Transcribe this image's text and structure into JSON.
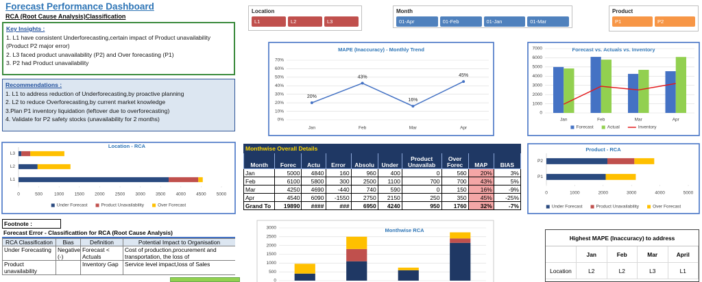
{
  "header": {
    "title": "Forecast Performance Dashboard",
    "subtitle": "RCA (Root Cause Analysis)Classification"
  },
  "key_insights": {
    "title": "Key Insights :",
    "items": [
      "1. L1 have consistent Underforecasting,certain impact of Product unavailability (Product P2 major error)",
      "2. L3 faced product unavailability (P2) and Over forecasting (P1)",
      "3. P2 had Product unavailability"
    ]
  },
  "recommendations": {
    "title": "Recommendations :",
    "items": [
      "1. L1 to address reduction of Underforecasting,by proactive planning",
      "2. L2 to reduce Overforecasting,by current market knowledge",
      "3.Plan P1 inventory liquidation (leftover due to overforecasting)",
      "4. Validate for P2 safety stocks (unavailability for 2 months)"
    ]
  },
  "slicers": [
    {
      "title": "Location",
      "items": [
        "L1",
        "L2",
        "L3"
      ],
      "color": "#c0504d"
    },
    {
      "title": "Month",
      "items": [
        "01-Apr",
        "01-Feb",
        "01-Jan",
        "01-Mar"
      ],
      "color": "#4f81bd"
    },
    {
      "title": "Product",
      "items": [
        "P1",
        "P2"
      ],
      "color": "#f79646"
    }
  ],
  "chart_data": [
    {
      "type": "line",
      "title": "MAPE (Inaccuracy) - Monthly Trend",
      "categories": [
        "Jan",
        "Feb",
        "Mar",
        "Apr"
      ],
      "values": [
        20,
        43,
        16,
        45
      ],
      "value_labels": [
        "20%",
        "43%",
        "16%",
        "45%"
      ],
      "color": "#4472c4",
      "ylim": [
        0,
        70
      ],
      "yticks": [
        {
          "value": 0,
          "label": "0%"
        },
        {
          "value": 10,
          "label": "10%"
        },
        {
          "value": 20,
          "label": "20%"
        },
        {
          "value": 30,
          "label": "30%"
        },
        {
          "value": 40,
          "label": "40%"
        },
        {
          "value": 50,
          "label": "50%"
        },
        {
          "value": 60,
          "label": "60%"
        },
        {
          "value": 70,
          "label": "70%"
        }
      ],
      "grid": true
    },
    {
      "type": "bar",
      "title": "Forecast vs. Actuals vs. Inventory",
      "categories": [
        "Jan",
        "Feb",
        "Mar",
        "Apr"
      ],
      "series": [
        {
          "name": "Forecast",
          "color": "#4472c4",
          "values": [
            5000,
            6100,
            4250,
            4540
          ]
        },
        {
          "name": "Actual",
          "color": "#92d050",
          "values": [
            4840,
            5800,
            4690,
            6090
          ]
        },
        {
          "name": "Inventory",
          "color": "#e31a1c",
          "values": [
            950,
            2900,
            2500,
            3200
          ],
          "style": "line"
        }
      ],
      "ylim": [
        0,
        7000
      ],
      "yticks": [
        0,
        1000,
        2000,
        3000,
        4000,
        5000,
        6000,
        7000
      ],
      "grid": true,
      "legend": "bottom"
    },
    {
      "type": "hbar",
      "title": "Location - RCA",
      "categories": [
        "L1",
        "L2",
        "L3"
      ],
      "stacked": true,
      "series": [
        {
          "name": "Under Forecast",
          "color": "#2a4a7f",
          "values": [
            3700,
            470,
            70
          ]
        },
        {
          "name": "Product Unavailability",
          "color": "#c0504d",
          "values": [
            730,
            0,
            220
          ]
        },
        {
          "name": "Over Forecast",
          "color": "#ffc000",
          "values": [
            110,
            810,
            840
          ]
        }
      ],
      "xlim": [
        0,
        5000
      ],
      "xticks": [
        0,
        500,
        1000,
        1500,
        2000,
        2500,
        3000,
        3500,
        4000,
        4500,
        5000
      ],
      "grid": false,
      "legend": "bottom"
    },
    {
      "type": "hbar",
      "title": "Product - RCA",
      "categories": [
        "P1",
        "P2"
      ],
      "stacked": true,
      "series": [
        {
          "name": "Under Forecast",
          "color": "#2a4a7f",
          "values": [
            2090,
            2150
          ]
        },
        {
          "name": "Product Unavailability",
          "color": "#c0504d",
          "values": [
            0,
            950
          ]
        },
        {
          "name": "Over Forecast",
          "color": "#ffc000",
          "values": [
            1060,
            700
          ]
        }
      ],
      "xlim": [
        0,
        5000
      ],
      "xticks": [
        0,
        1000,
        2000,
        3000,
        4000,
        5000
      ],
      "grid": false,
      "legend": "bottom"
    },
    {
      "type": "bar",
      "title": "Monthwise RCA",
      "stacked": true,
      "series": [
        {
          "color": "#1f3864",
          "values": [
            400,
            1100,
            590,
            2150
          ]
        },
        {
          "color": "#c0504d",
          "values": [
            0,
            700,
            0,
            250
          ]
        },
        {
          "color": "#ffc000",
          "values": [
            560,
            700,
            150,
            350
          ]
        }
      ],
      "ylim": [
        0,
        3000
      ],
      "yticks": [
        0,
        500,
        1000,
        1500,
        2000,
        2500,
        3000
      ],
      "grid": true
    }
  ],
  "monthwise_table": {
    "title": "Monthwise Overall Details",
    "columns": [
      "Month",
      "Forec",
      "Actu",
      "Error",
      "Absolu",
      "Under",
      "Product Unavailab",
      "Over Forec",
      "MAP",
      "BIAS"
    ],
    "rows": [
      [
        "Jan",
        "5000",
        "4840",
        "160",
        "960",
        "400",
        "0",
        "560",
        "20%",
        "3%"
      ],
      [
        "Feb",
        "6100",
        "5800",
        "300",
        "2500",
        "1100",
        "700",
        "700",
        "43%",
        "5%"
      ],
      [
        "Mar",
        "4250",
        "4690",
        "-440",
        "740",
        "590",
        "0",
        "150",
        "16%",
        "-9%"
      ],
      [
        "Apr",
        "4540",
        "6090",
        "-1550",
        "2750",
        "2150",
        "250",
        "350",
        "45%",
        "-25%"
      ],
      [
        "Grand To",
        "19890",
        "####",
        "###",
        "6950",
        "4240",
        "950",
        "1760",
        "32%",
        "-7%"
      ]
    ]
  },
  "footnote": {
    "label": "Footnote :",
    "title": "Forecast Error - Classificattion for RCA (Root Cause Analysis)",
    "columns": [
      "RCA Classification",
      "Bias",
      "Definition",
      "Potential Impact to Organisation"
    ],
    "rows": [
      [
        "Under Forecasting",
        "Negative (-)",
        "Forecast < Actuals",
        "Cost of production,procurement and transportation, the loss of"
      ],
      [
        "Product unavailability",
        null,
        "Inventory Gap",
        "Service level impact,loss of Sales"
      ]
    ]
  },
  "highest_mape": {
    "title": "Highest MAPE (Inaccuracy) to address",
    "columns": [
      "Jan",
      "Feb",
      "Mar",
      "April"
    ],
    "rows": [
      {
        "label": "Location",
        "values": [
          "L2",
          "L2",
          "L3",
          "L1"
        ]
      }
    ]
  }
}
